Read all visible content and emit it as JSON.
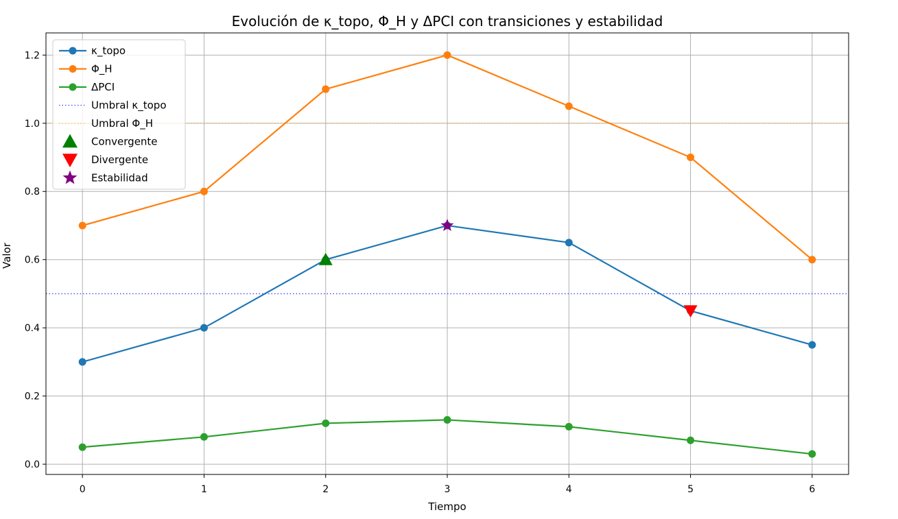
{
  "chart_data": {
    "type": "line",
    "title": "Evolución de κ_topo, Φ_H y ΔPCI con transiciones y estabilidad",
    "xlabel": "Tiempo",
    "ylabel": "Valor",
    "x": [
      0,
      1,
      2,
      3,
      4,
      5,
      6
    ],
    "xlim": [
      -0.3,
      6.3
    ],
    "ylim": [
      -0.03,
      1.265
    ],
    "x_ticks": [
      "0",
      "1",
      "2",
      "3",
      "4",
      "5",
      "6"
    ],
    "y_ticks": [
      "0.0",
      "0.2",
      "0.4",
      "0.6",
      "0.8",
      "1.0",
      "1.2"
    ],
    "grid": true,
    "legend_position": "upper-left",
    "series": [
      {
        "name": "κ_topo",
        "color": "#1f77b4",
        "values": [
          0.3,
          0.4,
          0.6,
          0.7,
          0.65,
          0.45,
          0.35
        ]
      },
      {
        "name": "Φ_H",
        "color": "#ff7f0e",
        "values": [
          0.7,
          0.8,
          1.1,
          1.2,
          1.05,
          0.9,
          0.6
        ]
      },
      {
        "name": "ΔPCI",
        "color": "#2ca02c",
        "values": [
          0.05,
          0.08,
          0.12,
          0.13,
          0.11,
          0.07,
          0.03
        ]
      }
    ],
    "thresholds": [
      {
        "name": "Umbral κ_topo",
        "y": 0.5,
        "color": "#0000ff",
        "style": "dotted"
      },
      {
        "name": "Umbral Φ_H",
        "y": 1.0,
        "color": "#ffa500",
        "style": "dotted"
      }
    ],
    "markers": [
      {
        "name": "Convergente",
        "shape": "triangle-up",
        "color": "#008000",
        "points": [
          [
            2,
            0.6
          ]
        ]
      },
      {
        "name": "Divergente",
        "shape": "triangle-down",
        "color": "#ff0000",
        "points": [
          [
            5,
            0.45
          ]
        ]
      },
      {
        "name": "Estabilidad",
        "shape": "star",
        "color": "#800080",
        "points": [
          [
            3,
            0.7
          ]
        ]
      }
    ]
  }
}
